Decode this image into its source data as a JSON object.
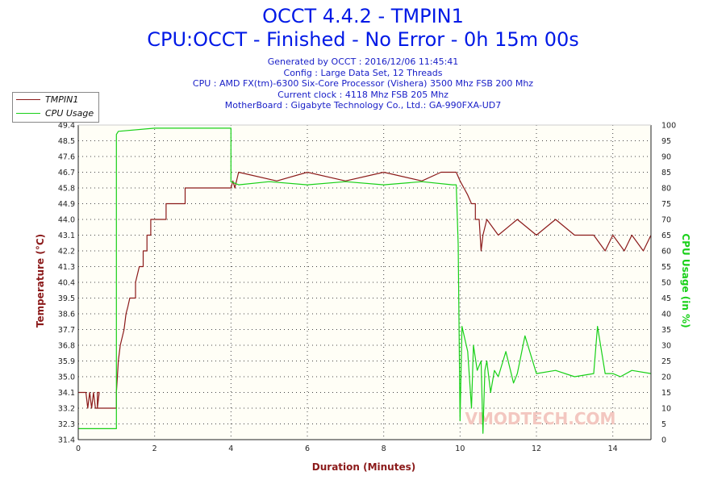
{
  "header": {
    "title_line1": "OCCT 4.4.2 - TMPIN1",
    "title_line2": "CPU:OCCT - Finished - No Error - 0h 15m 00s",
    "info_lines": [
      "Generated by OCCT : 2016/12/06 11:45:41",
      "Config : Large Data Set, 12 Threads",
      "CPU : AMD FX(tm)-6300 Six-Core Processor (Vishera) 3500 Mhz FSB 200 Mhz",
      "Current clock : 4118 Mhz FSB 205 Mhz",
      "MotherBoard : Gigabyte Technology Co., Ltd.: GA-990FXA-UD7"
    ]
  },
  "legend": {
    "items": [
      {
        "label": "TMPIN1",
        "color": "#8b1a1a"
      },
      {
        "label": "CPU Usage",
        "color": "#18d018"
      }
    ]
  },
  "watermark": "VMODTECH.COM",
  "chart_data": {
    "type": "line",
    "xlabel": "Duration (Minutes)",
    "ylabel_left": "Temperature (°C)",
    "ylabel_right": "CPU Usage (in %)",
    "xlim": [
      0,
      15
    ],
    "x_ticks": [
      "0",
      "2",
      "4",
      "6",
      "8",
      "10",
      "12",
      "14"
    ],
    "ylim_left": [
      31.4,
      49.4
    ],
    "y_ticks_left": [
      "31.4",
      "32.3",
      "33.2",
      "34.1",
      "35.0",
      "35.9",
      "36.8",
      "37.7",
      "38.6",
      "39.5",
      "40.4",
      "41.3",
      "42.2",
      "43.1",
      "44.0",
      "44.9",
      "45.8",
      "46.7",
      "47.6",
      "48.5",
      "49.4"
    ],
    "ylim_right": [
      0,
      100
    ],
    "y_ticks_right": [
      "0",
      "5",
      "10",
      "15",
      "20",
      "25",
      "30",
      "35",
      "40",
      "45",
      "50",
      "55",
      "60",
      "65",
      "70",
      "75",
      "80",
      "85",
      "90",
      "95",
      "100"
    ],
    "grid": true,
    "legend_position": "top-left",
    "series": [
      {
        "name": "TMPIN1",
        "axis": "left",
        "color": "#8b1a1a",
        "points": [
          [
            0,
            34.1
          ],
          [
            0.2,
            34.1
          ],
          [
            0.25,
            33.2
          ],
          [
            0.3,
            34.1
          ],
          [
            0.35,
            33.2
          ],
          [
            0.4,
            34.1
          ],
          [
            0.45,
            33.2
          ],
          [
            0.5,
            33.2
          ],
          [
            0.55,
            34.1
          ],
          [
            0.5,
            34.1
          ],
          [
            0.5,
            33.2
          ],
          [
            1.0,
            33.2
          ],
          [
            1.0,
            34.1
          ],
          [
            1.05,
            35.9
          ],
          [
            1.1,
            36.8
          ],
          [
            1.2,
            37.7
          ],
          [
            1.25,
            38.6
          ],
          [
            1.3,
            39.0
          ],
          [
            1.35,
            39.5
          ],
          [
            1.5,
            39.5
          ],
          [
            1.5,
            40.4
          ],
          [
            1.6,
            41.3
          ],
          [
            1.7,
            41.3
          ],
          [
            1.7,
            42.2
          ],
          [
            1.8,
            42.2
          ],
          [
            1.8,
            43.1
          ],
          [
            1.9,
            43.1
          ],
          [
            1.9,
            44.0
          ],
          [
            2.2,
            44.0
          ],
          [
            2.3,
            44.0
          ],
          [
            2.3,
            44.9
          ],
          [
            2.8,
            44.9
          ],
          [
            2.8,
            45.8
          ],
          [
            4.0,
            45.8
          ],
          [
            4.05,
            46.2
          ],
          [
            4.1,
            45.8
          ],
          [
            4.2,
            46.7
          ],
          [
            5.2,
            46.2
          ],
          [
            6.0,
            46.7
          ],
          [
            7.0,
            46.2
          ],
          [
            8.0,
            46.7
          ],
          [
            9.0,
            46.2
          ],
          [
            9.5,
            46.7
          ],
          [
            9.9,
            46.7
          ],
          [
            10.0,
            46.2
          ],
          [
            10.1,
            45.8
          ],
          [
            10.2,
            45.4
          ],
          [
            10.3,
            44.9
          ],
          [
            10.4,
            44.9
          ],
          [
            10.4,
            44.0
          ],
          [
            10.5,
            44.0
          ],
          [
            10.55,
            42.2
          ],
          [
            10.6,
            43.1
          ],
          [
            10.7,
            44.0
          ],
          [
            11.0,
            43.1
          ],
          [
            11.5,
            44.0
          ],
          [
            12.0,
            43.1
          ],
          [
            12.5,
            44.0
          ],
          [
            13.0,
            43.1
          ],
          [
            13.5,
            43.1
          ],
          [
            13.8,
            42.2
          ],
          [
            14.0,
            43.1
          ],
          [
            14.3,
            42.2
          ],
          [
            14.5,
            43.1
          ],
          [
            14.8,
            42.2
          ],
          [
            15.0,
            43.1
          ]
        ]
      },
      {
        "name": "CPU Usage",
        "axis": "right",
        "color": "#18d018",
        "points": [
          [
            0,
            3.5
          ],
          [
            0.5,
            3.5
          ],
          [
            1.0,
            3.5
          ],
          [
            1.0,
            97
          ],
          [
            1.05,
            98
          ],
          [
            2.0,
            99
          ],
          [
            3.0,
            99
          ],
          [
            3.9,
            99
          ],
          [
            4.0,
            99
          ],
          [
            4.0,
            82
          ],
          [
            4.2,
            81
          ],
          [
            5.0,
            82
          ],
          [
            6.0,
            81
          ],
          [
            7.0,
            82
          ],
          [
            8.0,
            81
          ],
          [
            9.0,
            82
          ],
          [
            9.8,
            81
          ],
          [
            9.9,
            81
          ],
          [
            9.95,
            62
          ],
          [
            10.0,
            6
          ],
          [
            10.05,
            36
          ],
          [
            10.2,
            28
          ],
          [
            10.3,
            10
          ],
          [
            10.35,
            30
          ],
          [
            10.45,
            22
          ],
          [
            10.55,
            25
          ],
          [
            10.6,
            2
          ],
          [
            10.65,
            22
          ],
          [
            10.7,
            25
          ],
          [
            10.8,
            15
          ],
          [
            10.9,
            22
          ],
          [
            11.0,
            20
          ],
          [
            11.2,
            28
          ],
          [
            11.4,
            18
          ],
          [
            11.5,
            21
          ],
          [
            11.7,
            33
          ],
          [
            12.0,
            21
          ],
          [
            12.5,
            22
          ],
          [
            13.0,
            20
          ],
          [
            13.5,
            21
          ],
          [
            13.6,
            36
          ],
          [
            13.8,
            21
          ],
          [
            14.0,
            21
          ],
          [
            14.2,
            20
          ],
          [
            14.5,
            22
          ],
          [
            15.0,
            21
          ]
        ]
      }
    ]
  }
}
